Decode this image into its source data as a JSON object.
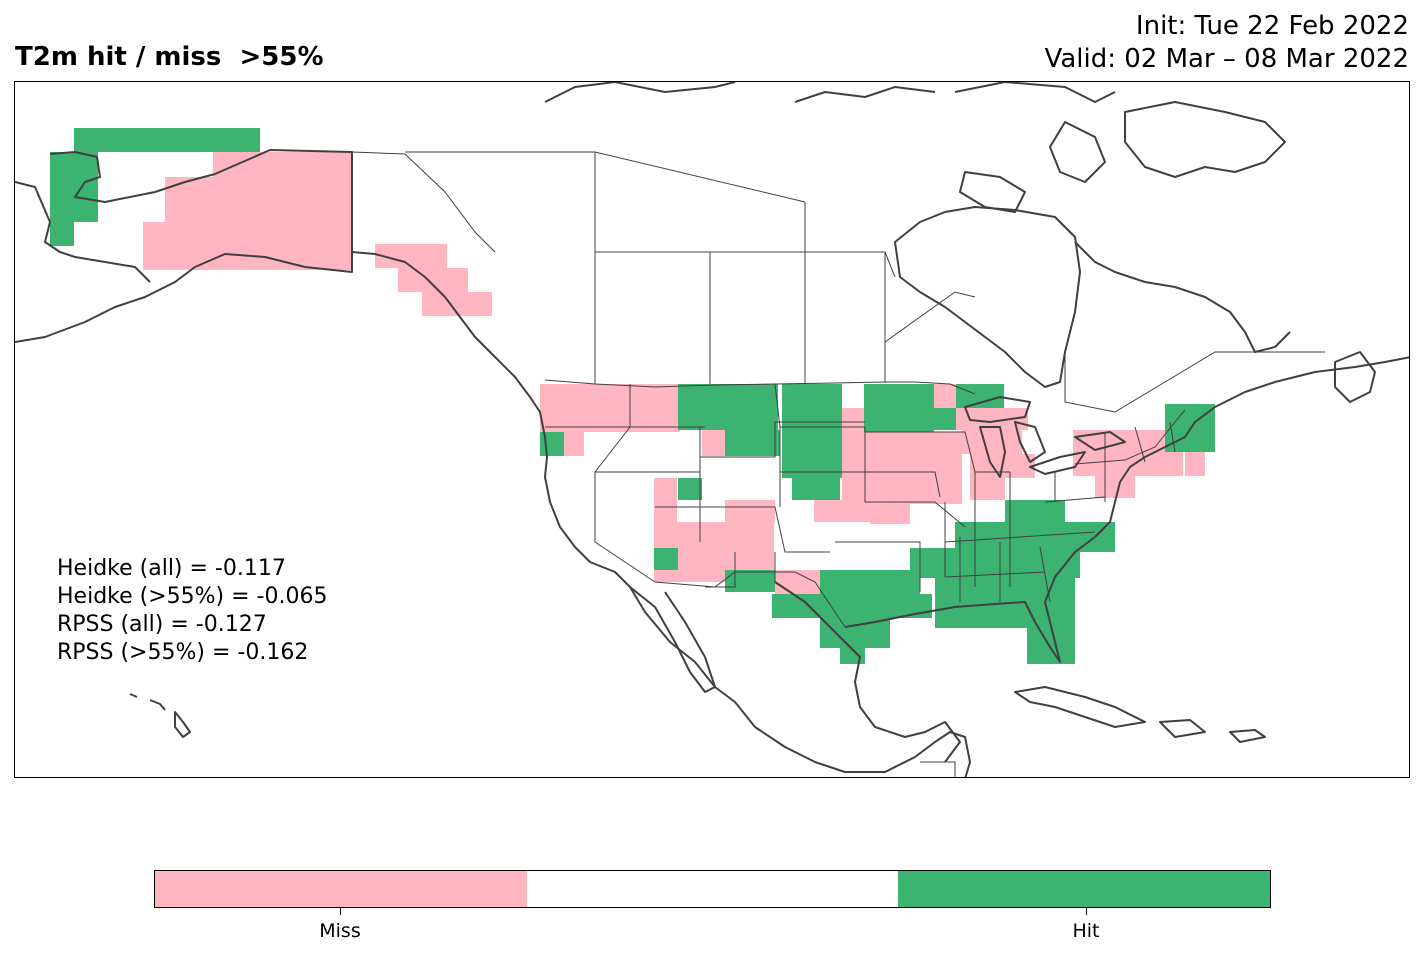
{
  "title": {
    "left": "T2m hit / miss  >55%",
    "init": "Init: Tue 22 Feb 2022",
    "valid": "Valid: 02 Mar – 08 Mar 2022"
  },
  "stats": [
    "Heidke (all) = -0.117",
    "Heidke (>55%) = -0.065",
    "RPSS (all) = -0.127",
    "RPSS (>55%) = -0.162"
  ],
  "colors": {
    "miss": "#ffb6c1",
    "neutral": "#ffffff",
    "hit": "#3cb371",
    "coast": "#404040"
  },
  "legend": {
    "miss_label": "Miss",
    "hit_label": "Hit"
  }
}
